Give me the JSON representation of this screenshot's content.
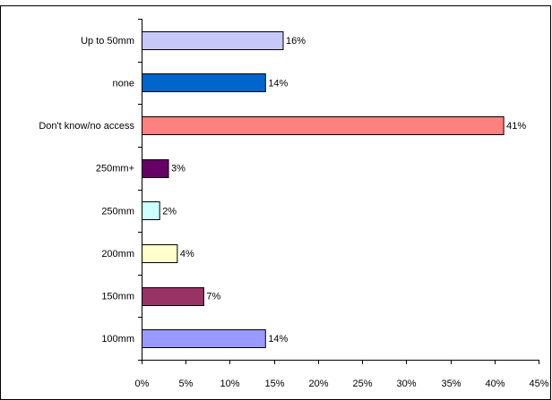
{
  "chart_data": {
    "type": "bar",
    "orientation": "horizontal",
    "title": "",
    "xlabel": "",
    "ylabel": "",
    "categories": [
      "Up to 50mm",
      "none",
      "Don't know/no access",
      "250mm+",
      "250mm",
      "200mm",
      "150mm",
      "100mm"
    ],
    "values": [
      16,
      14,
      41,
      3,
      2,
      4,
      7,
      14
    ],
    "value_labels": [
      "16%",
      "14%",
      "41%",
      "3%",
      "2%",
      "4%",
      "7%",
      "14%"
    ],
    "bar_colors": [
      "#c8c8f8",
      "#0066cc",
      "#ff8080",
      "#660066",
      "#ccffff",
      "#ffffcc",
      "#993366",
      "#9999ff"
    ],
    "xlim": [
      0,
      45
    ],
    "x_ticks": [
      0,
      5,
      10,
      15,
      20,
      25,
      30,
      35,
      40,
      45
    ],
    "x_tick_labels": [
      "0%",
      "5%",
      "10%",
      "15%",
      "20%",
      "25%",
      "30%",
      "35%",
      "40%",
      "45%"
    ],
    "grid": false,
    "legend": "none"
  }
}
